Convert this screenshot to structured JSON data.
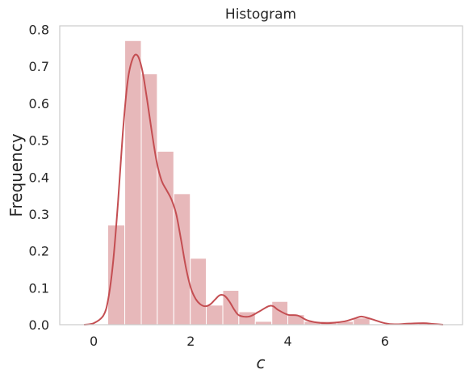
{
  "chart_data": {
    "type": "bar",
    "title": "Histogram",
    "xlabel": "c",
    "ylabel": "Frequency",
    "xlim": [
      -0.7,
      7.6
    ],
    "ylim": [
      0,
      0.81
    ],
    "xticks": [
      0,
      2,
      4,
      6
    ],
    "yticks": [
      0.0,
      0.1,
      0.2,
      0.3,
      0.4,
      0.5,
      0.6,
      0.7,
      0.8
    ],
    "grid": false,
    "bar_color": "#c44e52",
    "bar_opacity": 0.4,
    "line_color": "#c44e52",
    "bins": [
      {
        "x0": 0.29,
        "x1": 0.64,
        "value": 0.27
      },
      {
        "x0": 0.64,
        "x1": 0.98,
        "value": 0.77
      },
      {
        "x0": 0.98,
        "x1": 1.31,
        "value": 0.68
      },
      {
        "x0": 1.31,
        "x1": 1.65,
        "value": 0.47
      },
      {
        "x0": 1.65,
        "x1": 1.99,
        "value": 0.355
      },
      {
        "x0": 1.99,
        "x1": 2.32,
        "value": 0.18
      },
      {
        "x0": 2.32,
        "x1": 2.66,
        "value": 0.053
      },
      {
        "x0": 2.66,
        "x1": 2.99,
        "value": 0.093
      },
      {
        "x0": 2.99,
        "x1": 3.33,
        "value": 0.035
      },
      {
        "x0": 3.33,
        "x1": 3.67,
        "value": 0.009
      },
      {
        "x0": 3.67,
        "x1": 4.0,
        "value": 0.063
      },
      {
        "x0": 4.0,
        "x1": 4.34,
        "value": 0.027
      },
      {
        "x0": 4.34,
        "x1": 4.68,
        "value": 0.009
      },
      {
        "x0": 4.68,
        "x1": 5.01,
        "value": 0.009
      },
      {
        "x0": 5.01,
        "x1": 5.35,
        "value": 0.009
      },
      {
        "x0": 5.35,
        "x1": 5.69,
        "value": 0.018
      },
      {
        "x0": 5.69,
        "x1": 6.02,
        "value": 0.0
      },
      {
        "x0": 6.02,
        "x1": 6.36,
        "value": 0.0
      },
      {
        "x0": 6.36,
        "x1": 6.7,
        "value": 0.0
      },
      {
        "x0": 6.7,
        "x1": 7.03,
        "value": 0.005
      }
    ],
    "kde": {
      "x": [
        -0.2,
        0.0,
        0.2,
        0.3,
        0.4,
        0.5,
        0.6,
        0.7,
        0.8,
        0.9,
        1.0,
        1.1,
        1.2,
        1.3,
        1.4,
        1.5,
        1.6,
        1.7,
        1.8,
        1.9,
        2.0,
        2.1,
        2.2,
        2.3,
        2.4,
        2.5,
        2.6,
        2.7,
        2.8,
        2.9,
        3.0,
        3.2,
        3.4,
        3.6,
        3.7,
        3.8,
        4.0,
        4.2,
        4.4,
        4.6,
        4.8,
        5.0,
        5.2,
        5.4,
        5.5,
        5.6,
        5.8,
        6.0,
        6.2,
        6.5,
        6.8,
        7.0,
        7.2
      ],
      "y": [
        0.0,
        0.004,
        0.025,
        0.07,
        0.17,
        0.33,
        0.52,
        0.66,
        0.72,
        0.73,
        0.69,
        0.61,
        0.52,
        0.44,
        0.39,
        0.365,
        0.34,
        0.3,
        0.23,
        0.155,
        0.1,
        0.07,
        0.055,
        0.05,
        0.055,
        0.068,
        0.08,
        0.078,
        0.062,
        0.04,
        0.025,
        0.022,
        0.035,
        0.05,
        0.05,
        0.04,
        0.027,
        0.025,
        0.012,
        0.006,
        0.004,
        0.006,
        0.01,
        0.018,
        0.022,
        0.02,
        0.012,
        0.004,
        0.001,
        0.003,
        0.004,
        0.002,
        0.0
      ]
    }
  }
}
